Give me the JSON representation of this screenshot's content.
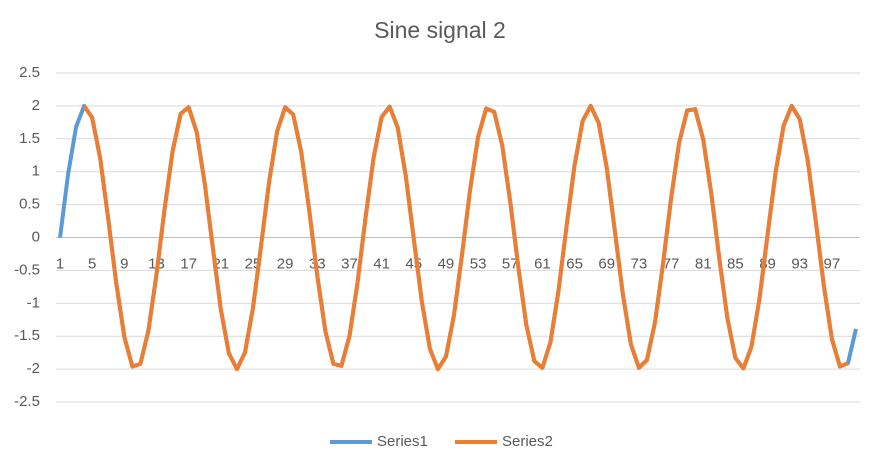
{
  "chart_data": {
    "type": "line",
    "title": "Sine signal 2",
    "categories": [
      1,
      null,
      null,
      null,
      5,
      null,
      null,
      null,
      9,
      null,
      null,
      null,
      13,
      null,
      null,
      null,
      17,
      null,
      null,
      null,
      21,
      null,
      null,
      null,
      25,
      null,
      null,
      null,
      29,
      null,
      null,
      null,
      33,
      null,
      null,
      null,
      37,
      null,
      null,
      null,
      41,
      null,
      null,
      null,
      45,
      null,
      null,
      null,
      49,
      null,
      null,
      null,
      53,
      null,
      null,
      null,
      57,
      null,
      null,
      null,
      61,
      null,
      null,
      null,
      65,
      null,
      null,
      null,
      69,
      null,
      null,
      null,
      73,
      null,
      null,
      null,
      77,
      null,
      null,
      null,
      81,
      null,
      null,
      null,
      85,
      null,
      null,
      null,
      89,
      null,
      null,
      null,
      93,
      null,
      null,
      null,
      97,
      null,
      null,
      null
    ],
    "series": [
      {
        "name": "Series1",
        "color": "#5b9bd5",
        "values": [
          0,
          0.96,
          1.68,
          2,
          1.82,
          1.2,
          0.28,
          -0.7,
          -1.51,
          -1.96,
          -1.92,
          -1.41,
          -0.56,
          0.43,
          1.31,
          1.88,
          1.98,
          1.6,
          0.82,
          -0.15,
          -1.09,
          -1.76,
          -2,
          -1.75,
          -1.07,
          -0.13,
          0.84,
          1.61,
          1.98,
          1.87,
          1.3,
          0.41,
          -0.58,
          -1.42,
          -1.92,
          -1.95,
          -1.5,
          -0.69,
          0.3,
          1.21,
          1.83,
          1.99,
          1.67,
          0.94,
          -0.02,
          -0.97,
          -1.69,
          -2,
          -1.81,
          -1.18,
          -0.26,
          0.72,
          1.53,
          1.96,
          1.91,
          1.4,
          0.54,
          -0.45,
          -1.33,
          -1.88,
          -1.98,
          -1.59,
          -0.81,
          0.17,
          1.1,
          1.77,
          2,
          1.74,
          1.06,
          0.11,
          -0.86,
          -1.62,
          -1.98,
          -1.86,
          -1.29,
          -0.4,
          0.59,
          1.44,
          1.93,
          1.95,
          1.49,
          0.67,
          -0.32,
          -1.22,
          -1.83,
          -1.99,
          -1.66,
          -0.93,
          0.04,
          0.99,
          1.7,
          2,
          1.8,
          1.17,
          0.25,
          -0.73,
          -1.54,
          -1.96,
          -1.91,
          -1.39
        ]
      },
      {
        "name": "Series2",
        "color": "#ed7d31",
        "values": [
          null,
          null,
          null,
          2,
          1.82,
          1.2,
          0.28,
          -0.7,
          -1.51,
          -1.96,
          -1.92,
          -1.41,
          -0.56,
          0.43,
          1.31,
          1.88,
          1.98,
          1.6,
          0.82,
          -0.15,
          -1.09,
          -1.76,
          -2,
          -1.75,
          -1.07,
          -0.13,
          0.84,
          1.61,
          1.98,
          1.87,
          1.3,
          0.41,
          -0.58,
          -1.42,
          -1.92,
          -1.95,
          -1.5,
          -0.69,
          0.3,
          1.21,
          1.83,
          1.99,
          1.67,
          0.94,
          -0.02,
          -0.97,
          -1.69,
          -2,
          -1.81,
          -1.18,
          -0.26,
          0.72,
          1.53,
          1.96,
          1.91,
          1.4,
          0.54,
          -0.45,
          -1.33,
          -1.88,
          -1.98,
          -1.59,
          -0.81,
          0.17,
          1.1,
          1.77,
          2,
          1.74,
          1.06,
          0.11,
          -0.86,
          -1.62,
          -1.98,
          -1.86,
          -1.29,
          -0.4,
          0.59,
          1.44,
          1.93,
          1.95,
          1.49,
          0.67,
          -0.32,
          -1.22,
          -1.83,
          -1.99,
          -1.66,
          -0.93,
          0.04,
          0.99,
          1.7,
          2,
          1.8,
          1.17,
          0.25,
          -0.73,
          -1.54,
          -1.96,
          -1.91,
          null
        ]
      }
    ],
    "ylim": [
      -2.5,
      2.5
    ],
    "yticks": [
      -2.5,
      -2,
      -1.5,
      -1,
      -0.5,
      0,
      0.5,
      1,
      1.5,
      2,
      2.5
    ],
    "grid": true,
    "legend": "bottom"
  }
}
